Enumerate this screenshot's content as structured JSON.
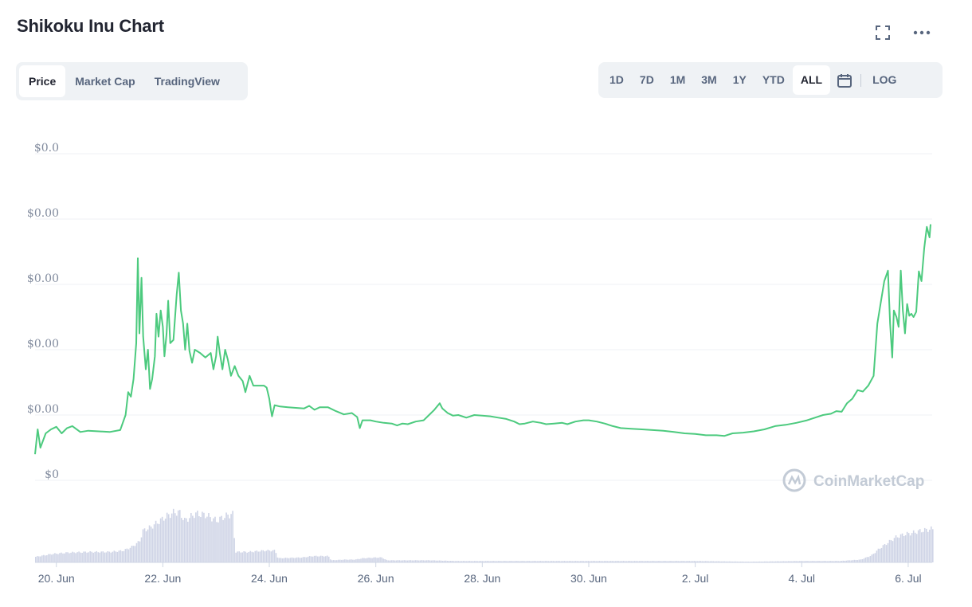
{
  "header": {
    "title": "Shikoku Inu Chart",
    "fullscreen_icon": "fullscreen-icon",
    "more_icon": "more-horizontal-icon"
  },
  "chart_tabs": [
    {
      "label": "Price",
      "active": true
    },
    {
      "label": "Market Cap",
      "active": false
    },
    {
      "label": "TradingView",
      "active": false
    }
  ],
  "time_ranges": [
    {
      "label": "1D",
      "active": false
    },
    {
      "label": "7D",
      "active": false
    },
    {
      "label": "1M",
      "active": false
    },
    {
      "label": "3M",
      "active": false
    },
    {
      "label": "1Y",
      "active": false
    },
    {
      "label": "YTD",
      "active": false
    },
    {
      "label": "ALL",
      "active": true
    }
  ],
  "calendar_icon": "calendar-icon",
  "log_label": "LOG",
  "watermark": "CoinMarketCap",
  "colors": {
    "price_line": "#4cca7e",
    "volume_bars": "#cfd4e6",
    "grid": "#eff2f5",
    "tab_bg": "#eff2f5"
  },
  "chart_data": {
    "type": "line",
    "ylabel_ticks": [
      "$0.0",
      "$0.00",
      "$0.00",
      "$0.00",
      "$0.00",
      "$0"
    ],
    "x_tick_labels": [
      "20. Jun",
      "22. Jun",
      "24. Jun",
      "26. Jun",
      "28. Jun",
      "30. Jun",
      "2. Jul",
      "4. Jul",
      "6. Jul"
    ],
    "x_tick_days": [
      20,
      22,
      24,
      26,
      28,
      30,
      32,
      34,
      36
    ],
    "xlim": [
      19.6,
      36.45
    ],
    "ylim": [
      0,
      5
    ],
    "grid": true,
    "series": [
      {
        "kind": "price",
        "points": [
          [
            19.6,
            0.4
          ],
          [
            19.65,
            0.78
          ],
          [
            19.7,
            0.5
          ],
          [
            19.8,
            0.72
          ],
          [
            19.9,
            0.78
          ],
          [
            20.0,
            0.82
          ],
          [
            20.1,
            0.72
          ],
          [
            20.2,
            0.8
          ],
          [
            20.3,
            0.83
          ],
          [
            20.45,
            0.74
          ],
          [
            20.6,
            0.76
          ],
          [
            20.8,
            0.75
          ],
          [
            21.0,
            0.74
          ],
          [
            21.2,
            0.77
          ],
          [
            21.3,
            1.0
          ],
          [
            21.35,
            1.35
          ],
          [
            21.4,
            1.28
          ],
          [
            21.45,
            1.55
          ],
          [
            21.5,
            2.1
          ],
          [
            21.53,
            3.4
          ],
          [
            21.56,
            2.25
          ],
          [
            21.6,
            3.1
          ],
          [
            21.63,
            2.2
          ],
          [
            21.68,
            1.7
          ],
          [
            21.72,
            2.0
          ],
          [
            21.76,
            1.4
          ],
          [
            21.8,
            1.55
          ],
          [
            21.85,
            1.9
          ],
          [
            21.88,
            2.55
          ],
          [
            21.92,
            2.2
          ],
          [
            21.96,
            2.6
          ],
          [
            22.0,
            2.35
          ],
          [
            22.03,
            1.9
          ],
          [
            22.07,
            2.25
          ],
          [
            22.1,
            2.75
          ],
          [
            22.14,
            2.1
          ],
          [
            22.2,
            2.15
          ],
          [
            22.26,
            2.85
          ],
          [
            22.3,
            3.18
          ],
          [
            22.34,
            2.6
          ],
          [
            22.38,
            2.4
          ],
          [
            22.42,
            2.0
          ],
          [
            22.46,
            2.4
          ],
          [
            22.5,
            1.98
          ],
          [
            22.55,
            1.8
          ],
          [
            22.6,
            2.0
          ],
          [
            22.7,
            1.95
          ],
          [
            22.8,
            1.88
          ],
          [
            22.9,
            1.95
          ],
          [
            22.95,
            1.7
          ],
          [
            23.0,
            1.9
          ],
          [
            23.03,
            2.2
          ],
          [
            23.07,
            1.95
          ],
          [
            23.12,
            1.7
          ],
          [
            23.17,
            2.0
          ],
          [
            23.22,
            1.85
          ],
          [
            23.28,
            1.6
          ],
          [
            23.35,
            1.75
          ],
          [
            23.42,
            1.6
          ],
          [
            23.5,
            1.52
          ],
          [
            23.55,
            1.35
          ],
          [
            23.63,
            1.6
          ],
          [
            23.7,
            1.45
          ],
          [
            23.8,
            1.45
          ],
          [
            23.9,
            1.45
          ],
          [
            23.95,
            1.42
          ],
          [
            24.0,
            1.25
          ],
          [
            24.03,
            1.08
          ],
          [
            24.05,
            0.98
          ],
          [
            24.1,
            1.15
          ],
          [
            24.2,
            1.13
          ],
          [
            24.35,
            1.12
          ],
          [
            24.5,
            1.11
          ],
          [
            24.65,
            1.1
          ],
          [
            24.75,
            1.14
          ],
          [
            24.85,
            1.08
          ],
          [
            24.95,
            1.12
          ],
          [
            25.1,
            1.12
          ],
          [
            25.25,
            1.06
          ],
          [
            25.4,
            1.01
          ],
          [
            25.55,
            1.03
          ],
          [
            25.65,
            0.97
          ],
          [
            25.7,
            0.8
          ],
          [
            25.75,
            0.92
          ],
          [
            25.9,
            0.92
          ],
          [
            26.0,
            0.9
          ],
          [
            26.15,
            0.88
          ],
          [
            26.3,
            0.87
          ],
          [
            26.4,
            0.84
          ],
          [
            26.5,
            0.87
          ],
          [
            26.6,
            0.86
          ],
          [
            26.75,
            0.9
          ],
          [
            26.9,
            0.92
          ],
          [
            27.0,
            1.0
          ],
          [
            27.1,
            1.08
          ],
          [
            27.2,
            1.18
          ],
          [
            27.25,
            1.1
          ],
          [
            27.35,
            1.03
          ],
          [
            27.45,
            0.99
          ],
          [
            27.55,
            1.0
          ],
          [
            27.7,
            0.96
          ],
          [
            27.85,
            1.0
          ],
          [
            28.0,
            0.99
          ],
          [
            28.15,
            0.98
          ],
          [
            28.3,
            0.96
          ],
          [
            28.45,
            0.94
          ],
          [
            28.6,
            0.9
          ],
          [
            28.7,
            0.86
          ],
          [
            28.8,
            0.87
          ],
          [
            28.95,
            0.9
          ],
          [
            29.1,
            0.88
          ],
          [
            29.2,
            0.86
          ],
          [
            29.35,
            0.87
          ],
          [
            29.5,
            0.88
          ],
          [
            29.6,
            0.86
          ],
          [
            29.75,
            0.9
          ],
          [
            29.9,
            0.92
          ],
          [
            30.0,
            0.92
          ],
          [
            30.15,
            0.9
          ],
          [
            30.3,
            0.87
          ],
          [
            30.45,
            0.83
          ],
          [
            30.6,
            0.8
          ],
          [
            30.8,
            0.79
          ],
          [
            31.0,
            0.78
          ],
          [
            31.2,
            0.77
          ],
          [
            31.4,
            0.76
          ],
          [
            31.6,
            0.74
          ],
          [
            31.8,
            0.72
          ],
          [
            32.0,
            0.71
          ],
          [
            32.2,
            0.69
          ],
          [
            32.4,
            0.69
          ],
          [
            32.55,
            0.68
          ],
          [
            32.7,
            0.72
          ],
          [
            32.9,
            0.73
          ],
          [
            33.1,
            0.75
          ],
          [
            33.3,
            0.78
          ],
          [
            33.5,
            0.83
          ],
          [
            33.7,
            0.85
          ],
          [
            33.9,
            0.88
          ],
          [
            34.1,
            0.92
          ],
          [
            34.25,
            0.96
          ],
          [
            34.4,
            1.0
          ],
          [
            34.55,
            1.02
          ],
          [
            34.65,
            1.06
          ],
          [
            34.75,
            1.05
          ],
          [
            34.85,
            1.18
          ],
          [
            34.95,
            1.25
          ],
          [
            35.05,
            1.38
          ],
          [
            35.15,
            1.36
          ],
          [
            35.25,
            1.45
          ],
          [
            35.35,
            1.6
          ],
          [
            35.42,
            2.4
          ],
          [
            35.48,
            2.7
          ],
          [
            35.55,
            3.05
          ],
          [
            35.62,
            3.21
          ],
          [
            35.66,
            2.4
          ],
          [
            35.7,
            1.88
          ],
          [
            35.73,
            2.6
          ],
          [
            35.78,
            2.5
          ],
          [
            35.82,
            2.35
          ],
          [
            35.86,
            3.21
          ],
          [
            35.9,
            2.6
          ],
          [
            35.94,
            2.25
          ],
          [
            35.98,
            2.7
          ],
          [
            36.02,
            2.52
          ],
          [
            36.06,
            2.55
          ],
          [
            36.1,
            2.5
          ],
          [
            36.15,
            2.58
          ],
          [
            36.2,
            3.2
          ],
          [
            36.25,
            3.05
          ],
          [
            36.3,
            3.55
          ],
          [
            36.35,
            3.88
          ],
          [
            36.4,
            3.72
          ],
          [
            36.42,
            3.92
          ]
        ]
      },
      {
        "kind": "volume",
        "points": [
          [
            19.6,
            0.08
          ],
          [
            19.9,
            0.12
          ],
          [
            20.2,
            0.14
          ],
          [
            20.6,
            0.15
          ],
          [
            21.0,
            0.15
          ],
          [
            21.25,
            0.17
          ],
          [
            21.4,
            0.22
          ],
          [
            21.55,
            0.3
          ],
          [
            21.62,
            0.46
          ],
          [
            21.75,
            0.5
          ],
          [
            21.9,
            0.58
          ],
          [
            22.05,
            0.66
          ],
          [
            22.2,
            0.72
          ],
          [
            22.3,
            0.72
          ],
          [
            22.4,
            0.6
          ],
          [
            22.6,
            0.7
          ],
          [
            22.8,
            0.68
          ],
          [
            23.0,
            0.6
          ],
          [
            23.15,
            0.66
          ],
          [
            23.3,
            0.7
          ],
          [
            23.35,
            0.15
          ],
          [
            23.6,
            0.15
          ],
          [
            23.9,
            0.17
          ],
          [
            24.1,
            0.17
          ],
          [
            24.15,
            0.06
          ],
          [
            24.6,
            0.07
          ],
          [
            24.8,
            0.09
          ],
          [
            25.1,
            0.09
          ],
          [
            25.15,
            0.03
          ],
          [
            25.4,
            0.04
          ],
          [
            25.6,
            0.04
          ],
          [
            25.75,
            0.06
          ],
          [
            26.0,
            0.07
          ],
          [
            26.1,
            0.07
          ],
          [
            26.2,
            0.03
          ],
          [
            27.0,
            0.03
          ],
          [
            27.5,
            0.02
          ],
          [
            28.0,
            0.02
          ],
          [
            29.0,
            0.02
          ],
          [
            30.0,
            0.02
          ],
          [
            31.0,
            0.02
          ],
          [
            32.0,
            0.02
          ],
          [
            33.0,
            0.01
          ],
          [
            34.0,
            0.02
          ],
          [
            34.7,
            0.02
          ],
          [
            34.9,
            0.03
          ],
          [
            35.1,
            0.04
          ],
          [
            35.3,
            0.1
          ],
          [
            35.45,
            0.2
          ],
          [
            35.6,
            0.28
          ],
          [
            35.75,
            0.36
          ],
          [
            35.9,
            0.4
          ],
          [
            36.05,
            0.42
          ],
          [
            36.2,
            0.45
          ],
          [
            36.35,
            0.47
          ],
          [
            36.42,
            0.48
          ]
        ]
      }
    ]
  }
}
